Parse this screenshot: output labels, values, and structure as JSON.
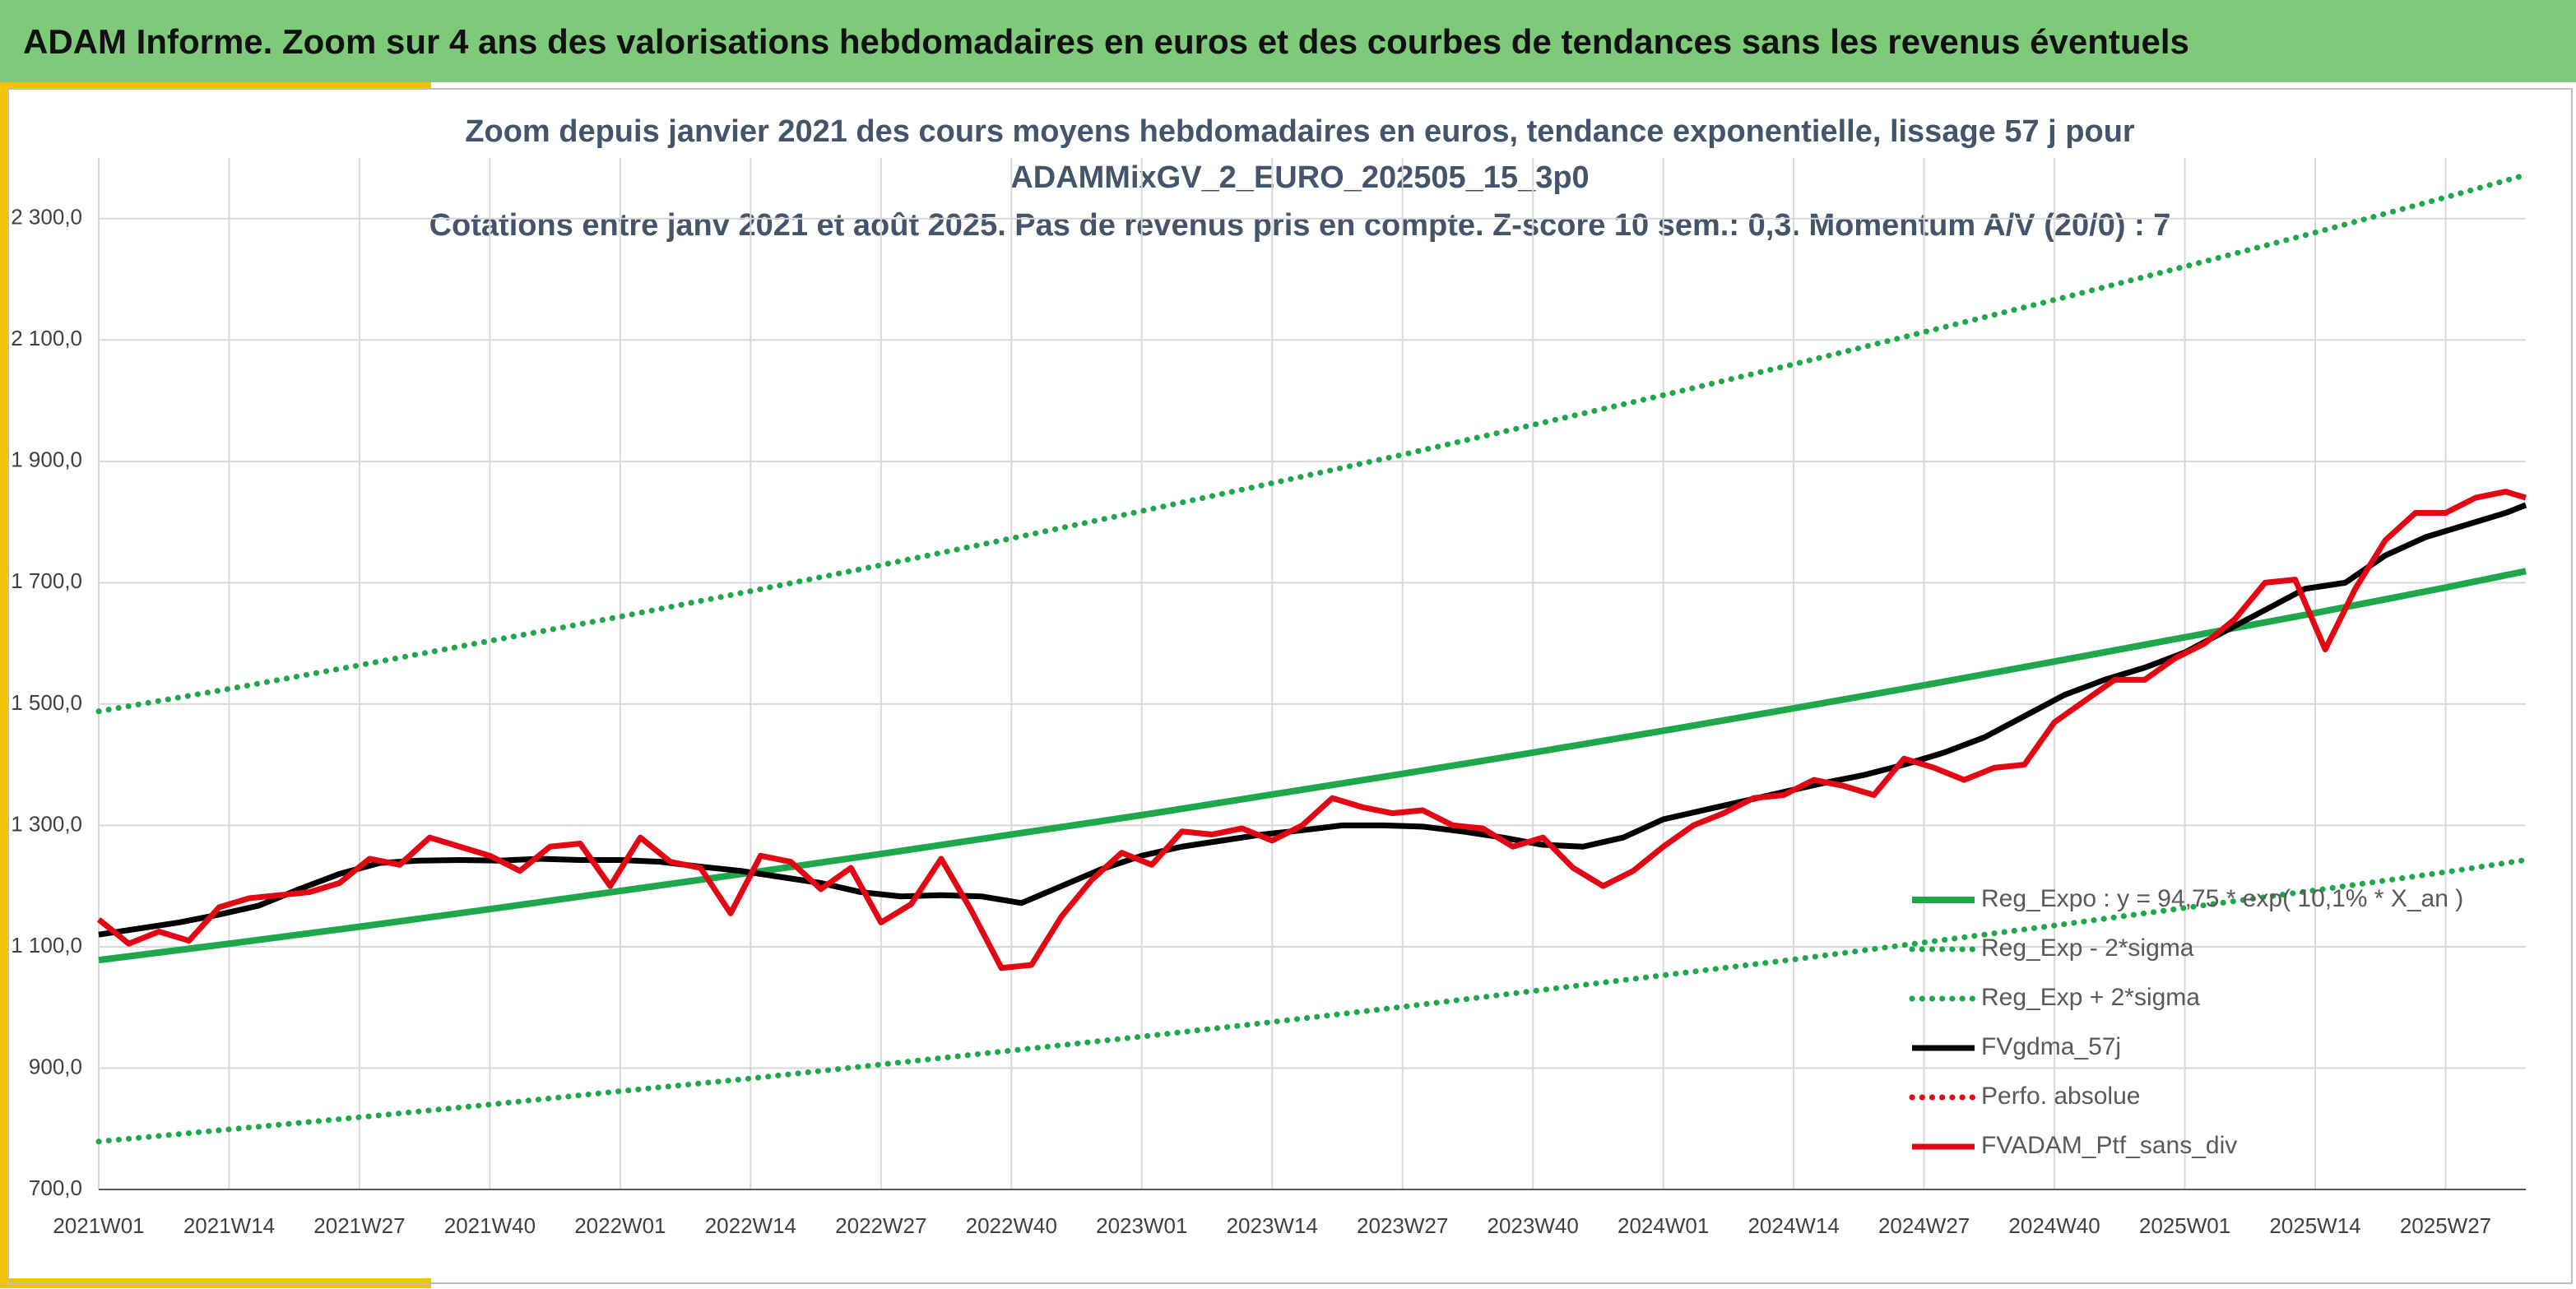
{
  "chart_data": {
    "type": "line",
    "header": "ADAM Informe. Zoom sur 4 ans des valorisations hebdomadaires en euros et des courbes de tendances sans les revenus éventuels",
    "subtitle": [
      "Zoom depuis janvier 2021 des cours moyens hebdomadaires en euros, tendance exponentielle, lissage 57 j pour",
      "ADAMMixGV_2_EURO_202505_15_3p0",
      "Cotations entre janv 2021 et août 2025. Pas de revenus pris en compte. Z-score 10 sem.: 0,3. Momentum A/V (20/0) : 7"
    ],
    "xlim": [
      0,
      242
    ],
    "xticks": [
      {
        "value": 0,
        "label": "2021W01"
      },
      {
        "value": 13,
        "label": "2021W14"
      },
      {
        "value": 26,
        "label": "2021W27"
      },
      {
        "value": 39,
        "label": "2021W40"
      },
      {
        "value": 52,
        "label": "2022W01"
      },
      {
        "value": 65,
        "label": "2022W14"
      },
      {
        "value": 78,
        "label": "2022W27"
      },
      {
        "value": 91,
        "label": "2022W40"
      },
      {
        "value": 104,
        "label": "2023W01"
      },
      {
        "value": 117,
        "label": "2023W14"
      },
      {
        "value": 130,
        "label": "2023W27"
      },
      {
        "value": 143,
        "label": "2023W40"
      },
      {
        "value": 156,
        "label": "2024W01"
      },
      {
        "value": 169,
        "label": "2024W14"
      },
      {
        "value": 182,
        "label": "2024W27"
      },
      {
        "value": 195,
        "label": "2024W40"
      },
      {
        "value": 208,
        "label": "2025W01"
      },
      {
        "value": 221,
        "label": "2025W14"
      },
      {
        "value": 234,
        "label": "2025W27"
      }
    ],
    "ylim": [
      700,
      2400
    ],
    "yticks": [
      {
        "value": 700,
        "label": "700,0"
      },
      {
        "value": 900,
        "label": "900,0"
      },
      {
        "value": 1100,
        "label": "1 100,0"
      },
      {
        "value": 1300,
        "label": "1 300,0"
      },
      {
        "value": 1500,
        "label": "1 500,0"
      },
      {
        "value": 1700,
        "label": "1 700,0"
      },
      {
        "value": 1900,
        "label": "1 900,0"
      },
      {
        "value": 2100,
        "label": "2 100,0"
      },
      {
        "value": 2300,
        "label": "2 300,0"
      }
    ],
    "grid": true,
    "legend": "bottom-right",
    "series": [
      {
        "name": "Reg_Expo : y = 94,75 * exp( 10,1% *  X_an )",
        "color": "#1ea84b",
        "style": "solid",
        "x": [
          0,
          13,
          26,
          39,
          52,
          65,
          78,
          91,
          104,
          117,
          130,
          143,
          156,
          169,
          182,
          195,
          208,
          221,
          234,
          242
        ],
        "values": [
          1078,
          1105,
          1133,
          1162,
          1192,
          1222,
          1253,
          1285,
          1317,
          1351,
          1385,
          1420,
          1456,
          1493,
          1531,
          1570,
          1610,
          1650,
          1692,
          1719
        ]
      },
      {
        "name": "Reg_Exp - 2*sigma",
        "color": "#1ea84b",
        "style": "dotted",
        "x": [
          0,
          13,
          26,
          39,
          52,
          65,
          78,
          91,
          104,
          117,
          130,
          143,
          156,
          169,
          182,
          195,
          208,
          221,
          234,
          242
        ],
        "values": [
          779,
          799,
          819,
          840,
          862,
          883,
          906,
          929,
          952,
          976,
          1001,
          1027,
          1053,
          1079,
          1107,
          1135,
          1164,
          1193,
          1223,
          1243
        ]
      },
      {
        "name": "Reg_Exp + 2*sigma",
        "color": "#1ea84b",
        "style": "dotted",
        "x": [
          0,
          13,
          26,
          39,
          52,
          65,
          78,
          91,
          104,
          117,
          130,
          143,
          156,
          169,
          182,
          195,
          208,
          221,
          234,
          242
        ],
        "values": [
          1488,
          1525,
          1564,
          1604,
          1644,
          1686,
          1729,
          1773,
          1818,
          1864,
          1911,
          1960,
          2009,
          2060,
          2113,
          2166,
          2221,
          2277,
          2335,
          2372
        ]
      },
      {
        "name": "FVgdma_57j",
        "color": "#000000",
        "style": "solid",
        "x": [
          0,
          4,
          8,
          12,
          16,
          20,
          24,
          28,
          32,
          36,
          40,
          44,
          48,
          52,
          56,
          60,
          64,
          68,
          72,
          76,
          80,
          84,
          88,
          92,
          96,
          100,
          104,
          108,
          112,
          116,
          120,
          124,
          128,
          132,
          136,
          140,
          144,
          148,
          152,
          156,
          160,
          164,
          168,
          172,
          176,
          180,
          184,
          188,
          192,
          196,
          200,
          204,
          208,
          212,
          216,
          220,
          224,
          228,
          232,
          236,
          240,
          242
        ],
        "values": [
          1120,
          1130,
          1140,
          1153,
          1168,
          1195,
          1220,
          1238,
          1242,
          1243,
          1242,
          1245,
          1243,
          1243,
          1240,
          1232,
          1225,
          1215,
          1205,
          1190,
          1183,
          1185,
          1183,
          1172,
          1200,
          1228,
          1250,
          1265,
          1275,
          1285,
          1292,
          1300,
          1300,
          1298,
          1290,
          1280,
          1268,
          1265,
          1280,
          1310,
          1325,
          1340,
          1355,
          1370,
          1383,
          1400,
          1420,
          1445,
          1480,
          1515,
          1540,
          1560,
          1585,
          1620,
          1655,
          1690,
          1700,
          1745,
          1775,
          1795,
          1815,
          1828
        ]
      },
      {
        "name": "Perfo. absolue",
        "color": "#e30613",
        "style": "dotted",
        "x": [],
        "values": []
      },
      {
        "name": "FVADAM_Ptf_sans_div",
        "color": "#e30613",
        "style": "solid",
        "x": [
          0,
          3,
          6,
          9,
          12,
          15,
          18,
          21,
          24,
          27,
          30,
          33,
          36,
          39,
          42,
          45,
          48,
          51,
          54,
          57,
          60,
          63,
          66,
          69,
          72,
          75,
          78,
          81,
          84,
          87,
          90,
          93,
          96,
          99,
          102,
          105,
          108,
          111,
          114,
          117,
          120,
          123,
          126,
          129,
          132,
          135,
          138,
          141,
          144,
          147,
          150,
          153,
          156,
          159,
          162,
          165,
          168,
          171,
          174,
          177,
          180,
          183,
          186,
          189,
          192,
          195,
          198,
          201,
          204,
          207,
          210,
          213,
          216,
          219,
          222,
          225,
          228,
          231,
          234,
          237,
          240,
          242
        ],
        "values": [
          1145,
          1105,
          1125,
          1110,
          1165,
          1180,
          1185,
          1190,
          1205,
          1245,
          1235,
          1280,
          1265,
          1250,
          1225,
          1265,
          1270,
          1200,
          1280,
          1240,
          1230,
          1155,
          1250,
          1240,
          1195,
          1230,
          1140,
          1170,
          1245,
          1160,
          1065,
          1070,
          1150,
          1210,
          1255,
          1235,
          1290,
          1285,
          1295,
          1275,
          1300,
          1345,
          1330,
          1320,
          1325,
          1300,
          1295,
          1265,
          1280,
          1230,
          1200,
          1225,
          1265,
          1300,
          1320,
          1345,
          1350,
          1375,
          1365,
          1350,
          1410,
          1395,
          1375,
          1395,
          1400,
          1470,
          1505,
          1540,
          1540,
          1575,
          1600,
          1640,
          1700,
          1705,
          1590,
          1690,
          1770,
          1815,
          1815,
          1840,
          1850,
          1840
        ]
      }
    ]
  }
}
